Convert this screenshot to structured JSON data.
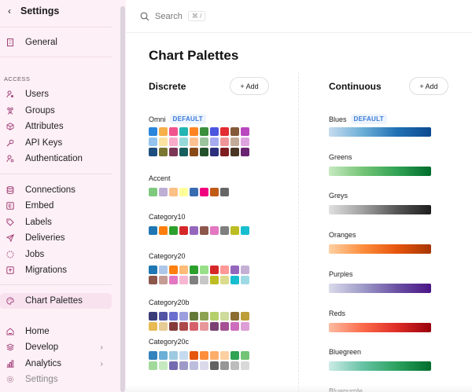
{
  "sidebar": {
    "back_label": "Settings",
    "general": "General",
    "access_section": "ACCESS",
    "access_items": [
      "Users",
      "Groups",
      "Attributes",
      "API Keys",
      "Authentication"
    ],
    "data_items": [
      "Connections",
      "Embed",
      "Labels",
      "Deliveries",
      "Jobs",
      "Migrations"
    ],
    "chart_palettes": "Chart Palettes",
    "bottom_items": [
      {
        "label": "Home",
        "arrow": ""
      },
      {
        "label": "Develop",
        "arrow": "›"
      },
      {
        "label": "Analytics",
        "arrow": "›"
      },
      {
        "label": "Settings",
        "arrow": ""
      }
    ]
  },
  "topbar": {
    "search_label": "Search",
    "shortcut": "⌘ /"
  },
  "main": {
    "title": "Chart Palettes",
    "discrete": {
      "title": "Discrete",
      "add_label": "+ Add",
      "palettes": [
        {
          "name": "Omni",
          "badge": "DEFAULT",
          "colors": [
            "#2a85dd",
            "#f6b04a",
            "#f0548f",
            "#21b5b4",
            "#fd8420",
            "#3b8f3b",
            "#4c55de",
            "#e22b32",
            "#855a39",
            "#b946bf",
            "#94c3ef",
            "#fbe4a0",
            "#f9acc9",
            "#94dad9",
            "#fec18f",
            "#9cc49c",
            "#a6aaef",
            "#f09598",
            "#c3ab99",
            "#dfa2e1",
            "#1e4e7e",
            "#797730",
            "#7d3555",
            "#175e5e",
            "#874a17",
            "#23502b",
            "#2c2f7c",
            "#7e1d22",
            "#4b3524",
            "#6a2372"
          ]
        },
        {
          "name": "Accent",
          "badge": "",
          "colors": [
            "#7fc97f",
            "#beaed4",
            "#fdc086",
            "#ffff99",
            "#386cb0",
            "#f0027f",
            "#bf5b17",
            "#666666"
          ]
        },
        {
          "name": "Category10",
          "badge": "",
          "colors": [
            "#1f77b4",
            "#ff7f0e",
            "#2ca02c",
            "#d62728",
            "#9467bd",
            "#8c564b",
            "#e377c2",
            "#7f7f7f",
            "#bcbd22",
            "#17becf"
          ]
        },
        {
          "name": "Category20",
          "badge": "",
          "colors": [
            "#1f77b4",
            "#aec7e8",
            "#ff7f0e",
            "#ffbb78",
            "#2ca02c",
            "#98df8a",
            "#d62728",
            "#ff9896",
            "#9467bd",
            "#c5b0d5",
            "#8c564b",
            "#c49c94",
            "#e377c2",
            "#f7b6d2",
            "#7f7f7f",
            "#c7c7c7",
            "#bcbd22",
            "#dbdb8d",
            "#17becf",
            "#9edae5"
          ]
        },
        {
          "name": "Category20b",
          "badge": "",
          "colors": [
            "#393b79",
            "#5254a3",
            "#6b6ecf",
            "#9c9ede",
            "#637939",
            "#8ca252",
            "#b5cf6b",
            "#cedb9c",
            "#8c6d31",
            "#bd9e39",
            "#e7ba52",
            "#e7cb94",
            "#843c39",
            "#ad494a",
            "#d6616b",
            "#e7969c",
            "#7b4173",
            "#a55194",
            "#ce6dbd",
            "#de9ed6"
          ]
        },
        {
          "name": "Category20c",
          "badge": "",
          "colors": [
            "#3182bd",
            "#6baed6",
            "#9ecae1",
            "#c6dbef",
            "#e6550d",
            "#fd8d3c",
            "#fdae6b",
            "#fdd0a2",
            "#31a354",
            "#74c476",
            "#a1d99b",
            "#c7e9c0",
            "#756bb1",
            "#9e9ac8",
            "#bcbddc",
            "#dadaeb",
            "#636363",
            "#969696",
            "#bdbdbd",
            "#d9d9d9"
          ]
        }
      ]
    },
    "continuous": {
      "title": "Continuous",
      "add_label": "+ Add",
      "palettes": [
        {
          "name": "Blues",
          "badge": "DEFAULT",
          "colors": [
            "#c6dbef",
            "#6baed6",
            "#2171b5",
            "#0b4a8f"
          ]
        },
        {
          "name": "Greens",
          "badge": "",
          "colors": [
            "#c7e9c0",
            "#74c476",
            "#31a354",
            "#006d2c"
          ]
        },
        {
          "name": "Greys",
          "badge": "",
          "colors": [
            "#e0e0e0",
            "#a0a0a0",
            "#555555",
            "#1e1e1e"
          ]
        },
        {
          "name": "Oranges",
          "badge": "",
          "colors": [
            "#fdd0a2",
            "#fd8d3c",
            "#e6550d",
            "#a63603"
          ]
        },
        {
          "name": "Purples",
          "badge": "",
          "colors": [
            "#dadaeb",
            "#9e9ac8",
            "#6a51a3",
            "#4a1486"
          ]
        },
        {
          "name": "Reds",
          "badge": "",
          "colors": [
            "#fcbba1",
            "#fb6a4a",
            "#de2d26",
            "#99000d"
          ]
        },
        {
          "name": "Bluegreen",
          "badge": "",
          "colors": [
            "#ccece6",
            "#66c2a4",
            "#2ca25f",
            "#006d2c"
          ]
        },
        {
          "name": "Bluepurple",
          "badge": "",
          "colors": []
        }
      ]
    }
  }
}
